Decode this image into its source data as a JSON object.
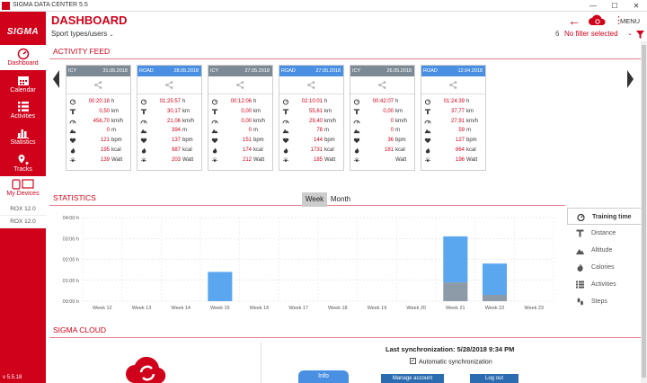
{
  "window": {
    "title": "SIGMA DATA CENTER 5.5",
    "minimize": "—",
    "maximize": "☐",
    "close": "✕"
  },
  "sidebar": {
    "logo": "SIGMA",
    "items": [
      {
        "label": "Dashboard",
        "icon": "dashboard-icon",
        "active": true
      },
      {
        "label": "Calendar",
        "icon": "calendar-icon",
        "active": false
      },
      {
        "label": "Activities",
        "icon": "activities-icon",
        "active": false
      },
      {
        "label": "Statistics",
        "icon": "statistics-icon",
        "active": false
      },
      {
        "label": "Tracks",
        "icon": "tracks-icon",
        "active": false
      }
    ],
    "my_devices_label": "My Devices",
    "devices": [
      "ROX 12.0",
      "ROX 12.0"
    ],
    "version": "v 5.5.18"
  },
  "header": {
    "title": "DASHBOARD",
    "sport_selector": "Sport types/users",
    "menu_label": "MENU",
    "filter_count": "6",
    "filter_text": "No filter selected"
  },
  "activity_feed": {
    "title": "ACTIVITY FEED",
    "cards": [
      {
        "sport": "ICY",
        "date": "31.05.2018",
        "header_color": "#7d8a96",
        "duration": "00:20:18",
        "distance": "0,50",
        "speed": "456,70",
        "altitude": "0",
        "heart_rate": "121",
        "calories": "195",
        "power": "139"
      },
      {
        "sport": "ROAD",
        "date": "28.05.2018",
        "header_color": "#4a90e2",
        "duration": "01:25:57",
        "distance": "30,17",
        "speed": "21,06",
        "altitude": "394",
        "heart_rate": "137",
        "calories": "987",
        "power": "203"
      },
      {
        "sport": "ICY",
        "date": "27.05.2018",
        "header_color": "#7d8a96",
        "duration": "00:12:06",
        "distance": "0,00",
        "speed": "0,00",
        "altitude": "0",
        "heart_rate": "151",
        "calories": "174",
        "power": "212"
      },
      {
        "sport": "ROAD",
        "date": "27.05.2018",
        "header_color": "#4a90e2",
        "duration": "02:10:01",
        "distance": "55,61",
        "speed": "29,40",
        "altitude": "78",
        "heart_rate": "144",
        "calories": "1731",
        "power": "185"
      },
      {
        "sport": "ICY",
        "date": "26.05.2018",
        "header_color": "#7d8a96",
        "duration": "00:42:07",
        "distance": "0,00",
        "speed": "0",
        "altitude": "0",
        "heart_rate": "36",
        "calories": "181",
        "power": ""
      },
      {
        "sport": "ROAD",
        "date": "12.04.2018",
        "header_color": "#4a90e2",
        "duration": "01:24:39",
        "distance": "37,77",
        "speed": "27,91",
        "altitude": "59",
        "heart_rate": "127",
        "calories": "864",
        "power": "196"
      }
    ],
    "units": {
      "duration": "h",
      "distance": "km",
      "speed": "km/h",
      "altitude": "m",
      "heart_rate": "bpm",
      "calories": "kcal",
      "power": "Watt"
    }
  },
  "statistics": {
    "title": "STATISTICS",
    "tabs": [
      {
        "label": "Week",
        "active": true
      },
      {
        "label": "Month",
        "active": false
      }
    ],
    "panel": [
      {
        "label": "Training time",
        "icon": "stopwatch-icon",
        "active": true
      },
      {
        "label": "Distance",
        "icon": "distance-icon",
        "active": false
      },
      {
        "label": "Altitude",
        "icon": "altitude-icon",
        "active": false
      },
      {
        "label": "Calories",
        "icon": "calories-icon",
        "active": false
      },
      {
        "label": "Activities",
        "icon": "activities-icon",
        "active": false
      },
      {
        "label": "Steps",
        "icon": "steps-icon",
        "active": false
      }
    ]
  },
  "chart_data": {
    "type": "bar",
    "categories": [
      "Week 12",
      "Week 13",
      "Week 14",
      "Week 15",
      "Week 16",
      "Week 17",
      "Week 18",
      "Week 19",
      "Week 20",
      "Week 21",
      "Week 22",
      "Week 23"
    ],
    "ytick_labels": [
      "00:00 h",
      "01:00 h",
      "02:00 h",
      "03:00 h",
      "04:00 h"
    ],
    "ylim": [
      0,
      4
    ],
    "series": [
      {
        "color": "#8c9ba7",
        "values": [
          0,
          0,
          0,
          0,
          0,
          0,
          0,
          0,
          0,
          0.9,
          0.3,
          0
        ]
      },
      {
        "color": "#5aa7f0",
        "values": [
          0,
          0,
          0,
          1.4,
          0,
          0,
          0,
          0,
          0,
          2.2,
          1.5,
          0
        ]
      }
    ]
  },
  "cloud": {
    "title": "SIGMA CLOUD",
    "last_sync": "Last synchronization: 5/28/2018 9:34 PM",
    "auto_sync_label": "Automatic synchronization",
    "auto_sync_checked": true,
    "info_tab": "Info",
    "manage_button": "Manage account",
    "logout_button": "Log out"
  }
}
